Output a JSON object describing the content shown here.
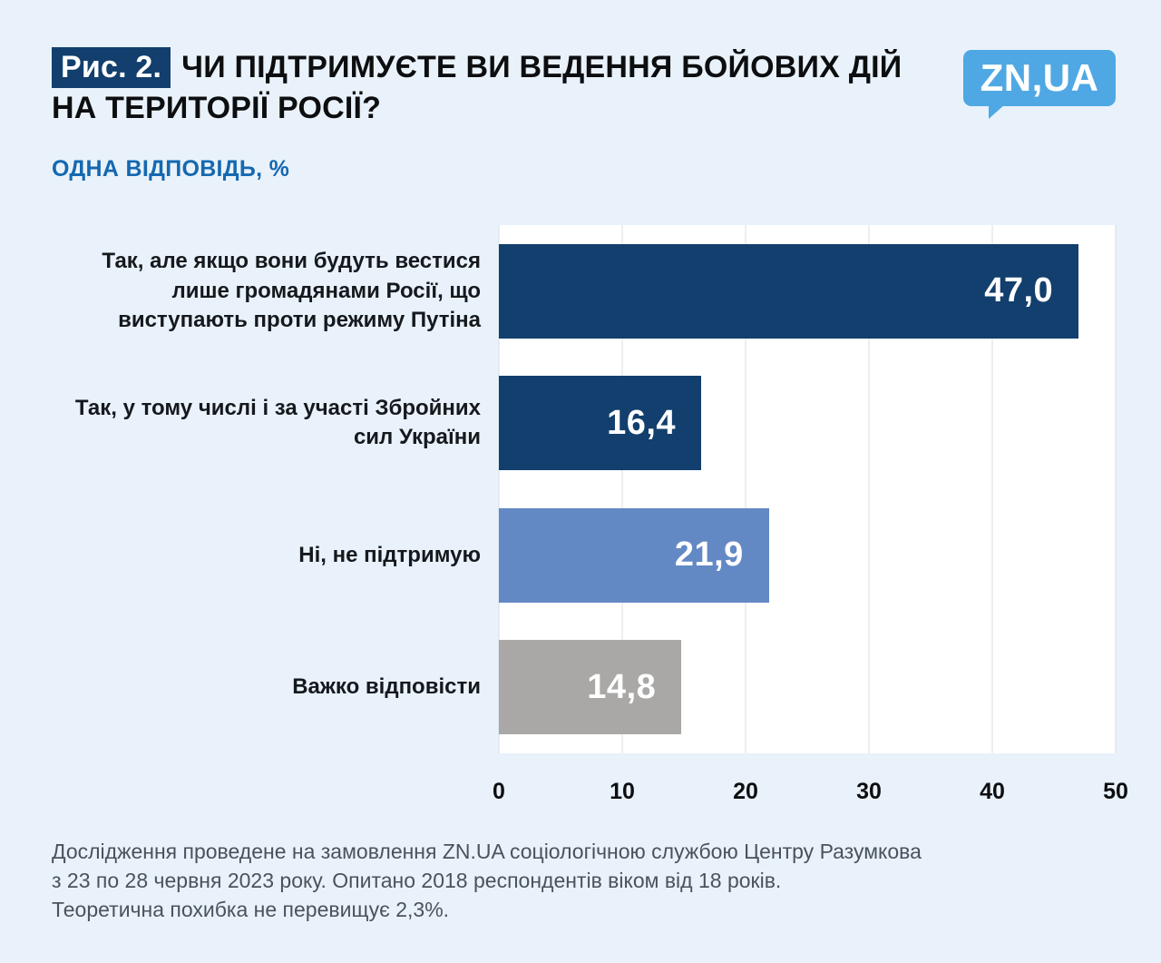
{
  "header": {
    "fig_label": "Рис. 2.",
    "title": "ЧИ ПІДТРИМУЄТЕ ВИ ВЕДЕННЯ БОЙОВИХ ДІЙ НА ТЕРИТОРІЇ РОСІЇ?",
    "subtitle": "ОДНА ВІДПОВІДЬ, %",
    "logo_text": "ZN,UA"
  },
  "chart_data": {
    "type": "bar",
    "orientation": "horizontal",
    "title": "ЧИ ПІДТРИМУЄТЕ ВИ ВЕДЕННЯ БОЙОВИХ ДІЙ НА ТЕРИТОРІЇ РОСІЇ?",
    "subtitle": "ОДНА ВІДПОВІДЬ, %",
    "unit": "%",
    "categories": [
      "Так, але якщо вони будуть вестися лише громадянами Росії, що виступають проти режиму Путіна",
      "Так, у тому числі і за участі Збройних сил України",
      "Ні, не підтримую",
      "Важко відповісти"
    ],
    "values": [
      47.0,
      16.4,
      21.9,
      14.8
    ],
    "value_labels": [
      "47,0",
      "16,4",
      "21,9",
      "14,8"
    ],
    "bar_colors": [
      "#123f6d",
      "#123f6d",
      "#6389c5",
      "#a9a8a6"
    ],
    "xlim": [
      0,
      50
    ],
    "x_ticks": [
      0,
      10,
      20,
      30,
      40,
      50
    ],
    "grid": true,
    "legend": "none"
  },
  "footer": {
    "lines": [
      "Дослідження проведене на замовлення ZN.UA соціологічною службою Центру Разумкова",
      "з 23 по 28 червня 2023 року. Опитано 2018 респондентів віком від 18 років.",
      "Теоретична похибка не перевищує 2,3%."
    ]
  },
  "colors": {
    "background": "#e9f2fa",
    "accent_navy": "#123f6d",
    "mid_blue_bar": "#6389c5",
    "gray_bar": "#a9a8a6",
    "subtitle_blue": "#1568b0",
    "logo_blue": "#4fa8e4",
    "plot_background": "#ffffff",
    "gridline": "#d8dee5",
    "footer_text": "#4a525b"
  }
}
